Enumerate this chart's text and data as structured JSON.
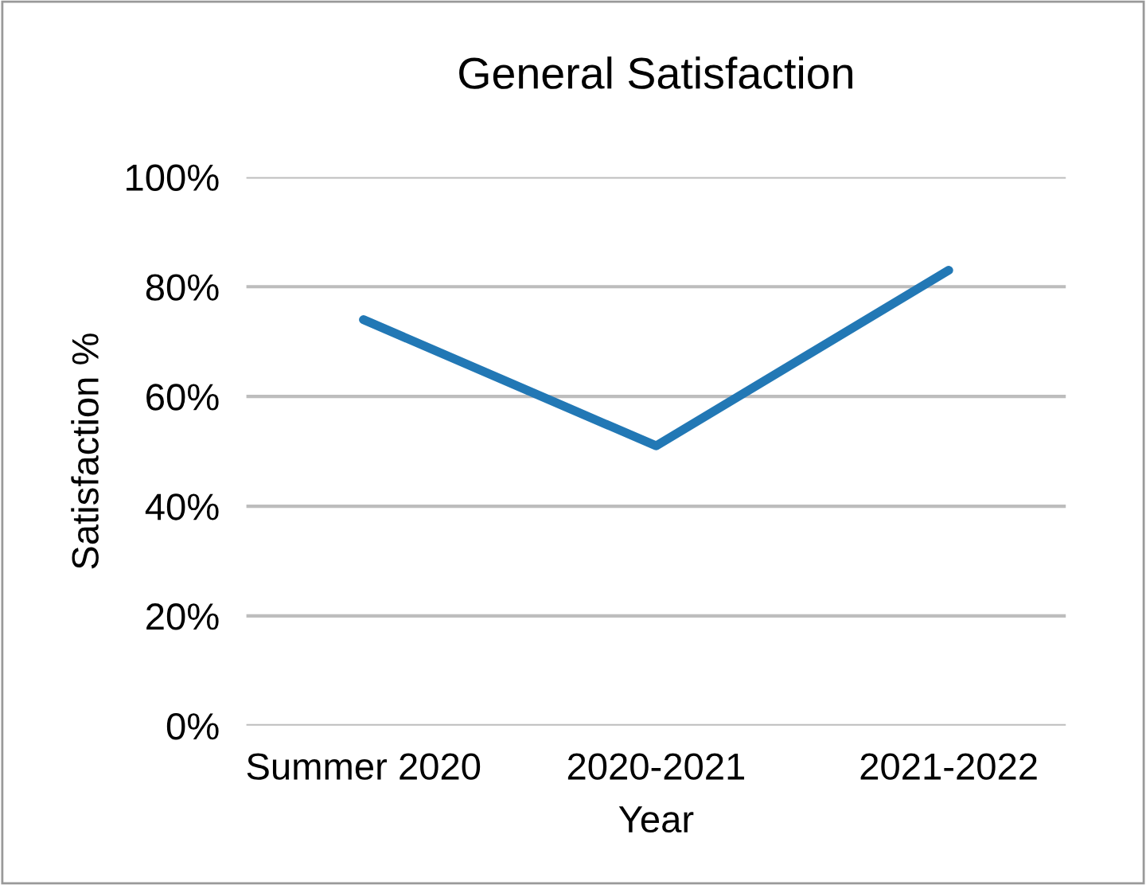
{
  "chart_data": {
    "type": "line",
    "title": "General Satisfaction",
    "xlabel": "Year",
    "ylabel": "Satisfaction %",
    "categories": [
      "Summer 2020",
      "2020-2021",
      "2021-2022"
    ],
    "series": [
      {
        "color": "#2278b5",
        "values": [
          74,
          51,
          83
        ]
      }
    ],
    "ylim": [
      0,
      100
    ],
    "yticks": [
      {
        "value": 0,
        "label": "0%"
      },
      {
        "value": 20,
        "label": "20%"
      },
      {
        "value": 40,
        "label": "40%"
      },
      {
        "value": 60,
        "label": "60%"
      },
      {
        "value": 80,
        "label": "80%"
      },
      {
        "value": 100,
        "label": "100%"
      }
    ],
    "grid": "y",
    "legend": false,
    "marker": "none",
    "line_style": "solid"
  }
}
